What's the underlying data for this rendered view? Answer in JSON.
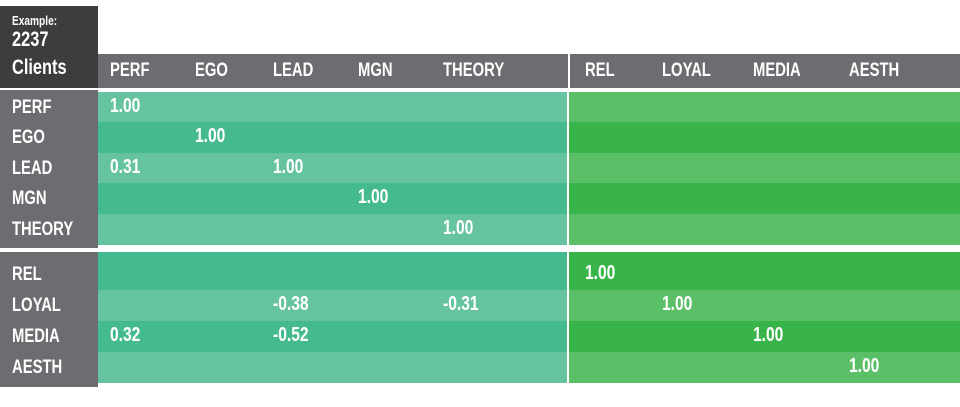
{
  "corner": {
    "caption": "Example:",
    "count": "2237",
    "unit": "Clients"
  },
  "colors": {
    "dark_header": "#3c3d3f",
    "gray_header": "#6c6d70",
    "teal_light": "#65c49f",
    "teal_dark": "#46ba8f",
    "green_light": "#5bbf68",
    "green_dark": "#38b44a"
  },
  "chart_data": {
    "type": "table",
    "title": "",
    "columns": [
      "PERF",
      "EGO",
      "LEAD",
      "MGN",
      "THEORY",
      "REL",
      "LOYAL",
      "MEDIA",
      "AESTH"
    ],
    "rows": [
      "PERF",
      "EGO",
      "LEAD",
      "MGN",
      "THEORY",
      "REL",
      "LOYAL",
      "MEDIA",
      "AESTH"
    ],
    "values": [
      [
        "1.00",
        "",
        "",
        "",
        "",
        "",
        "",
        "",
        ""
      ],
      [
        "",
        "1.00",
        "",
        "",
        "",
        "",
        "",
        "",
        ""
      ],
      [
        "0.31",
        "",
        "1.00",
        "",
        "",
        "",
        "",
        "",
        ""
      ],
      [
        "",
        "",
        "",
        "1.00",
        "",
        "",
        "",
        "",
        ""
      ],
      [
        "",
        "",
        "",
        "",
        "1.00",
        "",
        "",
        "",
        ""
      ],
      [
        "",
        "",
        "",
        "",
        "",
        "1.00",
        "",
        "",
        ""
      ],
      [
        "",
        "",
        "-0.38",
        "",
        "-0.31",
        "",
        "1.00",
        "",
        ""
      ],
      [
        "0.32",
        "",
        "-0.52",
        "",
        "",
        "",
        "",
        "1.00",
        ""
      ],
      [
        "",
        "",
        "",
        "",
        "",
        "",
        "",
        "",
        "1.00"
      ]
    ]
  }
}
